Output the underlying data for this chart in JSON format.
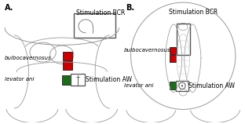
{
  "panel_A": {
    "label": "A.",
    "bcr_label": "Stimulation BCR",
    "bulbo_label": "bulbocavernosus",
    "levator_label": "levator ani",
    "aw_label": "Stimulation AW"
  },
  "panel_B": {
    "label": "B.",
    "bcr_label": "Stimulation BCR",
    "bulbo_label": "bulbocavernosus",
    "levator_label": "levator ani",
    "aw_label": "Stimulation AW"
  },
  "red_color": "#cc0000",
  "green_color": "#1a6e1a",
  "line_color": "#999999",
  "dark_line": "#555555",
  "font_size_panel": 7,
  "font_size_label": 5.0,
  "font_size_text": 5.5
}
